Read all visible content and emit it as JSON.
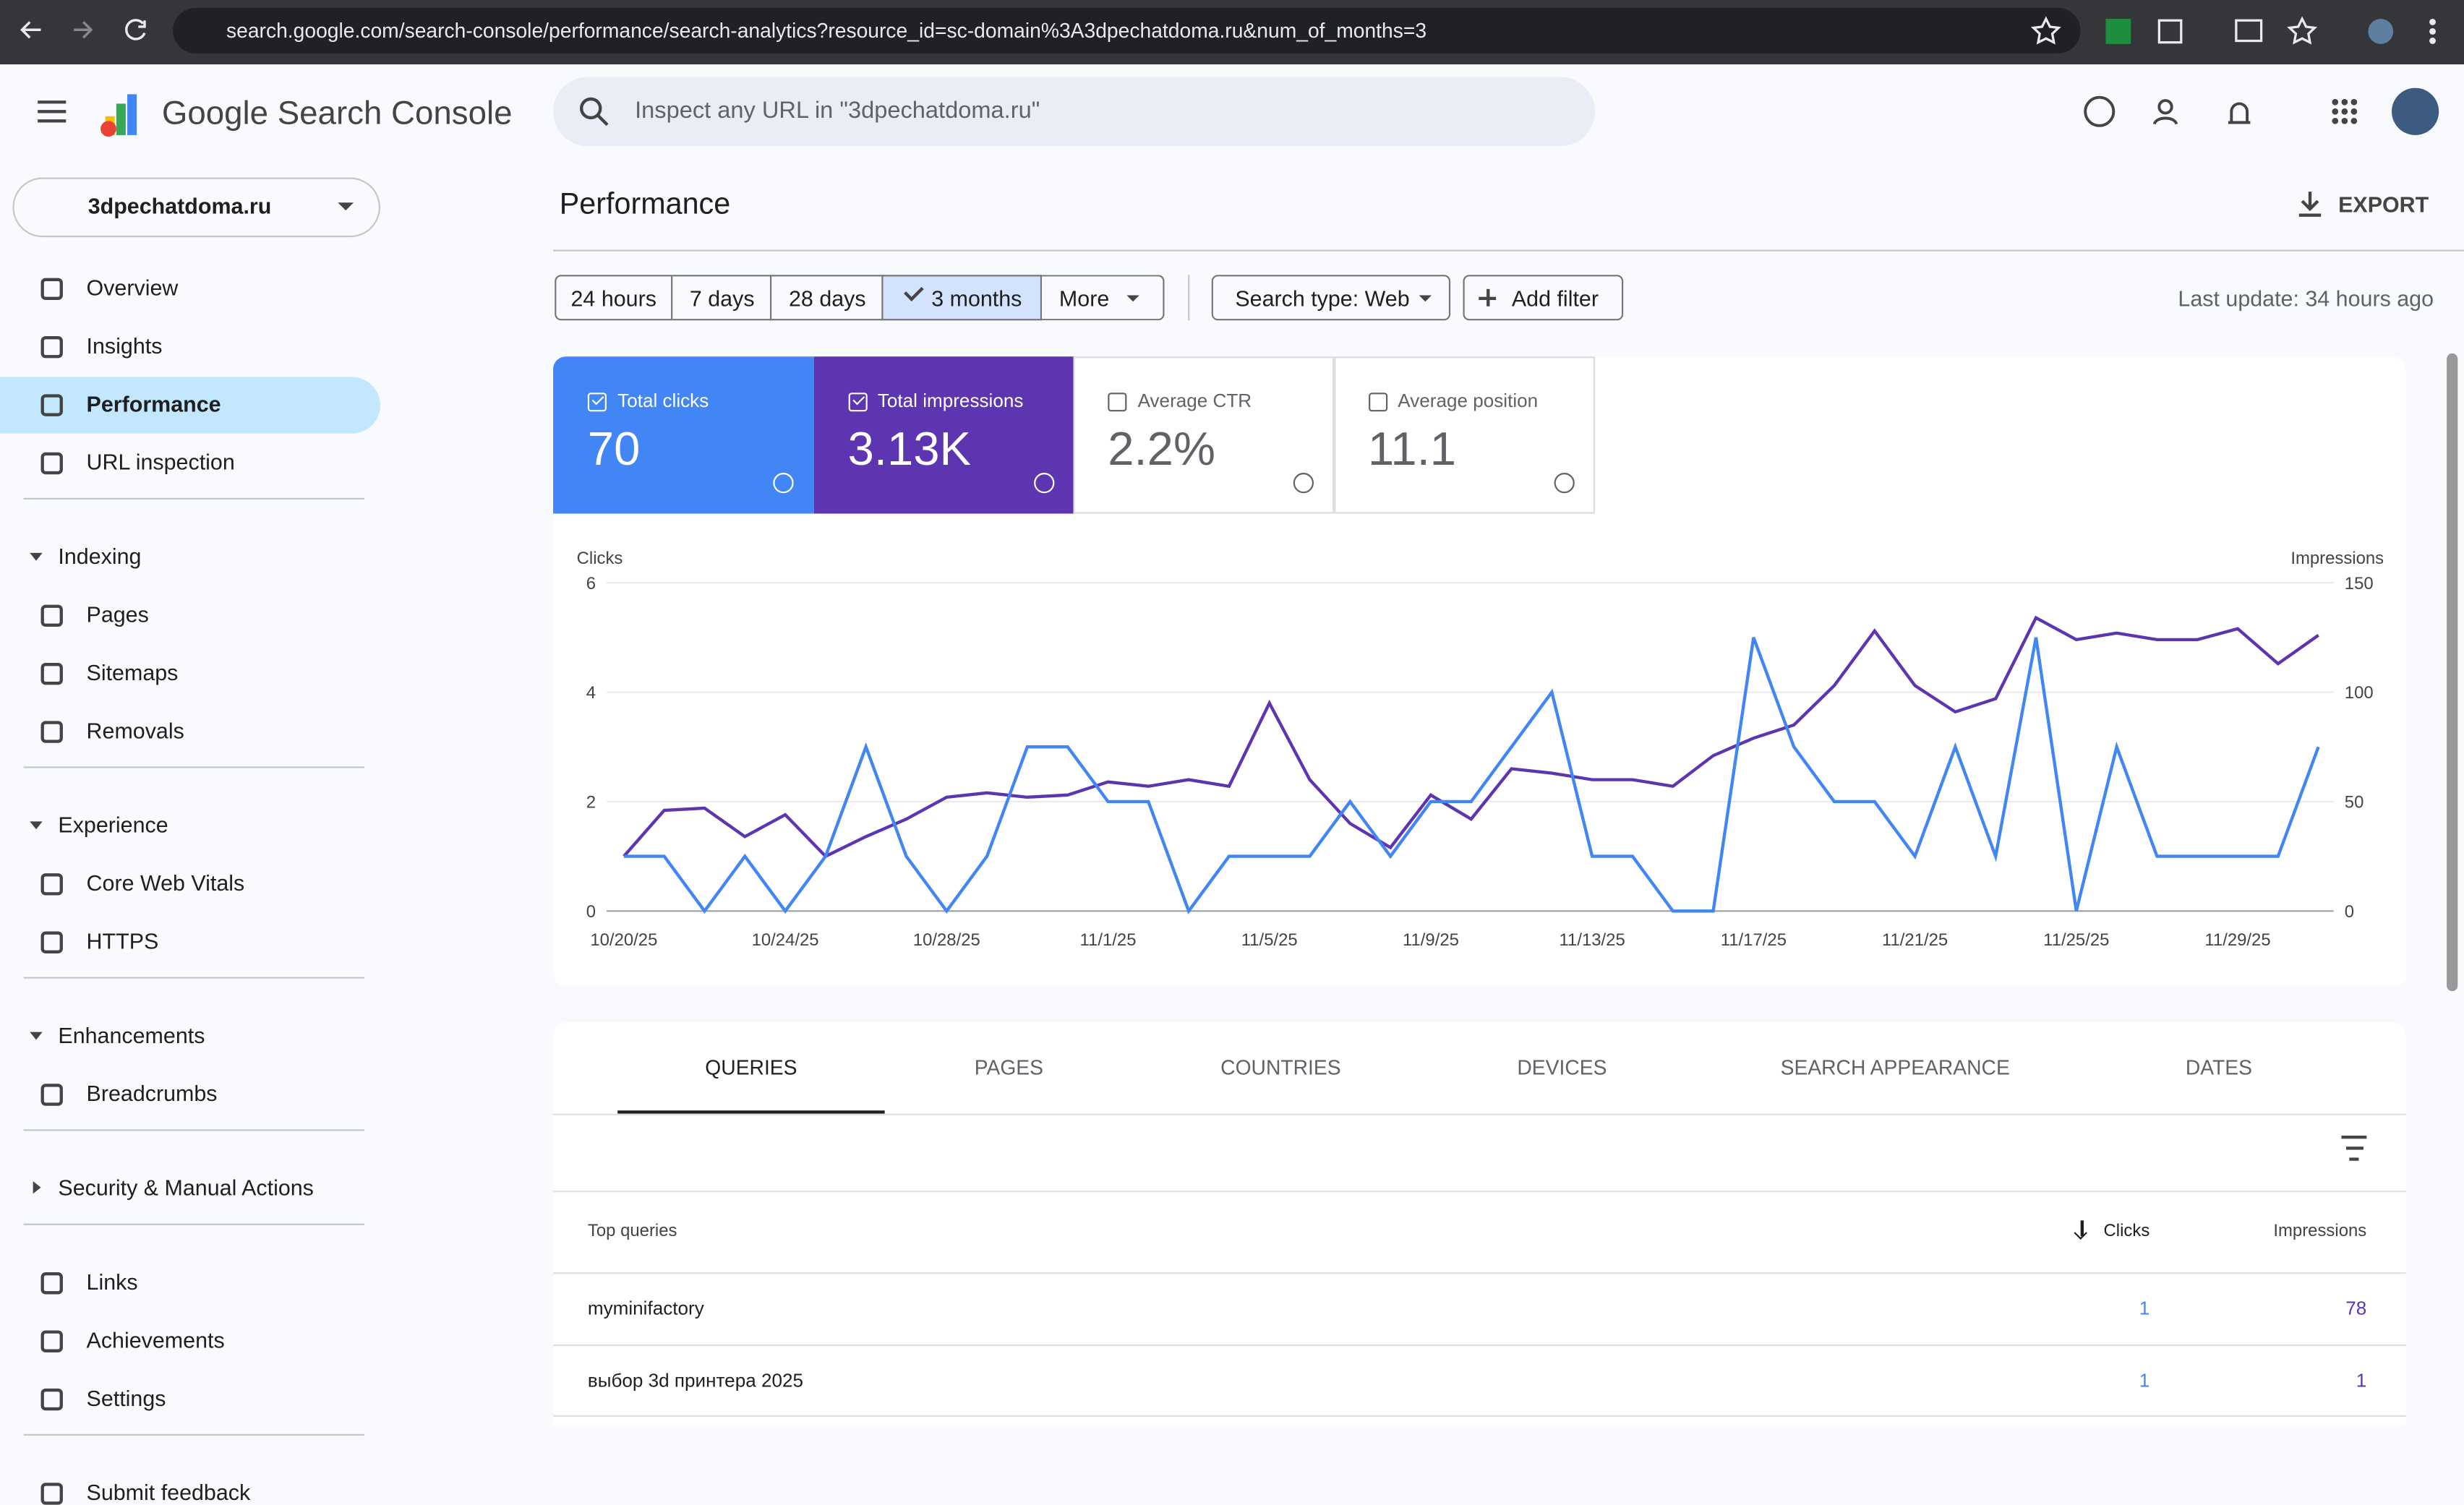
{
  "browser": {
    "url": "search.google.com/search-console/performance/search-analytics?resource_id=sc-domain%3A3dpechatdoma.ru&num_of_months=3"
  },
  "header": {
    "product": "Google Search Console",
    "search_placeholder": "Inspect any URL in \"3dpechatdoma.ru\""
  },
  "sidebar": {
    "property": "3dpechatdoma.ru",
    "top": [
      "Overview",
      "Insights",
      "Performance",
      "URL inspection"
    ],
    "sections": [
      {
        "title": "Indexing",
        "items": [
          "Pages",
          "Sitemaps",
          "Removals"
        ]
      },
      {
        "title": "Experience",
        "items": [
          "Core Web Vitals",
          "HTTPS"
        ]
      },
      {
        "title": "Enhancements",
        "items": [
          "Breadcrumbs"
        ]
      }
    ],
    "collapsed": "Security & Manual Actions",
    "bottom": [
      "Links",
      "Achievements",
      "Settings"
    ],
    "feedback": "Submit feedback"
  },
  "main": {
    "title": "Performance",
    "export": "EXPORT",
    "ranges": [
      "24 hours",
      "7 days",
      "28 days",
      "3 months",
      "More"
    ],
    "search_type": "Search type: Web",
    "add_filter": "Add filter",
    "last_update": "Last update: 34 hours ago"
  },
  "metrics": [
    {
      "label": "Total clicks",
      "value": 70
    },
    {
      "label": "Total impressions",
      "value": "3.13K"
    },
    {
      "label": "Average CTR",
      "value": "2.2%"
    },
    {
      "label": "Average position",
      "value": 11.1
    }
  ],
  "chart_data": {
    "type": "line",
    "categories": [
      "10/20/25",
      null,
      null,
      null,
      "10/24/25",
      null,
      null,
      null,
      "10/28/25",
      null,
      null,
      null,
      "11/1/25",
      null,
      null,
      null,
      "11/5/25",
      null,
      null,
      null,
      "11/9/25",
      null,
      null,
      null,
      "11/13/25",
      null,
      null,
      null,
      "11/17/25",
      null,
      null,
      null,
      "11/21/25",
      null,
      null,
      null,
      "11/25/25",
      null,
      null,
      null,
      "11/29/25",
      null,
      null
    ],
    "series": [
      {
        "name": "Clicks",
        "color": "#4285f4",
        "values": [
          1,
          1,
          0,
          1,
          0,
          1,
          3,
          1,
          0,
          1,
          3,
          3,
          2,
          2,
          0,
          1,
          1,
          1,
          2,
          1,
          2,
          2,
          3,
          4,
          1,
          1,
          0,
          0,
          5,
          3,
          2,
          2,
          1,
          3,
          1,
          5,
          0,
          3,
          1,
          1,
          1,
          1,
          3
        ]
      },
      {
        "name": "Impressions",
        "color": "#5e35b1",
        "axis": "y2",
        "values": [
          25,
          46,
          47,
          34,
          44,
          25,
          34,
          42,
          52,
          54,
          52,
          53,
          59,
          57,
          60,
          57,
          95,
          60,
          40,
          29,
          53,
          42,
          65,
          63,
          60,
          60,
          57,
          71,
          79,
          85,
          103,
          128,
          103,
          91,
          97,
          134,
          124,
          127,
          124,
          124,
          129,
          113,
          126
        ]
      }
    ],
    "ylim": [
      0,
      6
    ],
    "yticks": [
      0,
      2,
      4,
      6
    ],
    "y2lim": [
      0,
      150
    ],
    "y2ticks": [
      0,
      50,
      100,
      150
    ],
    "grid": true
  },
  "tabs": [
    "QUERIES",
    "PAGES",
    "COUNTRIES",
    "DEVICES",
    "SEARCH APPEARANCE",
    "DATES"
  ],
  "table": {
    "header": [
      "Top queries",
      "Clicks",
      "Impressions"
    ],
    "rows": [
      [
        "myminifactory",
        1,
        78
      ],
      [
        "выбор 3d принтера 2025",
        1,
        1
      ]
    ]
  }
}
